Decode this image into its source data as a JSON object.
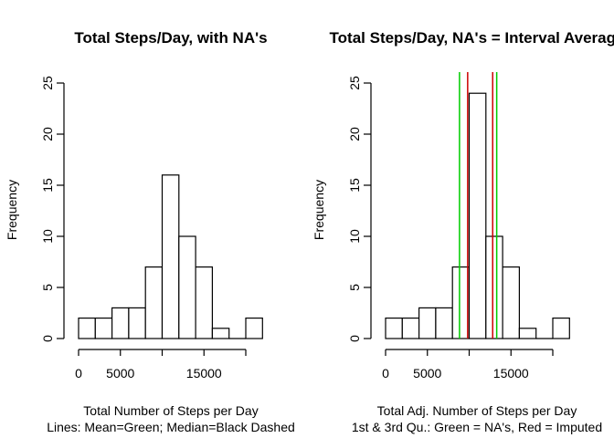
{
  "chart_data": [
    {
      "type": "bar",
      "title": "Total Steps/Day, with NA's",
      "xlabel": "Total Number of Steps per Day",
      "xlabel_line2": "Lines:  Mean=Green;  Median=Black Dashed",
      "ylabel": "Frequency",
      "bin_width": 2000,
      "bins_start": 0,
      "values": [
        2,
        2,
        3,
        3,
        7,
        16,
        10,
        7,
        1,
        0,
        2
      ],
      "xlim": [
        0,
        22000
      ],
      "ylim": [
        0,
        25
      ],
      "x_ticks": [
        0,
        5000,
        15000
      ],
      "y_ticks": [
        0,
        5,
        10,
        15,
        20,
        25
      ],
      "vlines": []
    },
    {
      "type": "bar",
      "title": "Total Steps/Day, NA's = Interval Average",
      "xlabel": "Total Adj. Number of Steps per Day",
      "xlabel_line2": "1st & 3rd Qu.: Green = NA's, Red = Imputed",
      "ylabel": "Frequency",
      "bin_width": 2000,
      "bins_start": 0,
      "values": [
        2,
        2,
        3,
        3,
        7,
        24,
        10,
        7,
        1,
        0,
        2
      ],
      "xlim": [
        0,
        22000
      ],
      "ylim": [
        0,
        25
      ],
      "x_ticks": [
        0,
        5000,
        15000
      ],
      "y_ticks": [
        0,
        5,
        10,
        15,
        20,
        25
      ],
      "vlines": [
        {
          "x": 8841,
          "color": "#00cc00"
        },
        {
          "x": 13294,
          "color": "#00cc00"
        },
        {
          "x": 9819,
          "color": "#cc0000"
        },
        {
          "x": 12811,
          "color": "#cc0000"
        }
      ]
    }
  ]
}
